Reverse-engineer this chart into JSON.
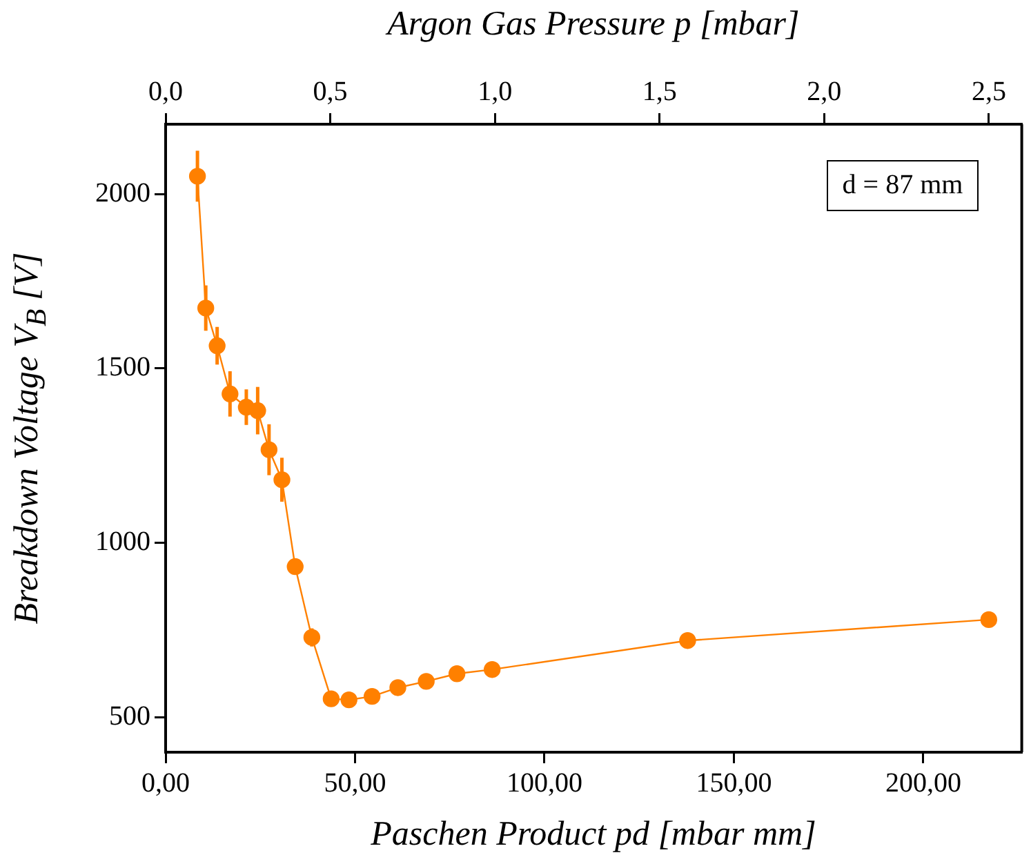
{
  "chart_data": {
    "type": "line",
    "xlabel": "Paschen Product pd [mbar mm]",
    "ylabel": "Breakdown Voltage V$_{B}$ [V]",
    "x2label": "Argon Gas Pressure p [mbar]",
    "annotations": [
      "d = 87 mm"
    ],
    "xlim": [
      0,
      226
    ],
    "xticks": [
      {
        "value": 0,
        "label": "0,00"
      },
      {
        "value": 50,
        "label": "50,00"
      },
      {
        "value": 100,
        "label": "100,00"
      },
      {
        "value": 150,
        "label": "150,00"
      },
      {
        "value": 200,
        "label": "200,00"
      }
    ],
    "x2lim": [
      0,
      2.6
    ],
    "x2ticks": [
      {
        "value": 0,
        "label": "0,0"
      },
      {
        "value": 0.5,
        "label": "0,5"
      },
      {
        "value": 1,
        "label": "1,0"
      },
      {
        "value": 1.5,
        "label": "1,5"
      },
      {
        "value": 2,
        "label": "2,0"
      },
      {
        "value": 2.5,
        "label": "2,5"
      }
    ],
    "ylim": [
      400,
      2200
    ],
    "yticks": [
      500,
      1000,
      1500,
      2000
    ],
    "grid": false,
    "legend": false,
    "marker": "circle",
    "line_style": "solid",
    "series": [
      {
        "color": "#ff8000",
        "x": [
          8.4,
          10.6,
          13.6,
          17.0,
          21.3,
          24.3,
          27.3,
          30.7,
          34.2,
          38.6,
          43.7,
          48.4,
          54.5,
          61.3,
          68.8,
          76.9,
          86.2,
          137.8,
          217.3
        ],
        "values": [
          2051,
          1673,
          1565,
          1427,
          1389,
          1379,
          1267,
          1181,
          932,
          729,
          553,
          550,
          560,
          585,
          603,
          625,
          637,
          720,
          780
        ],
        "errors": [
          73,
          65,
          54,
          65,
          51,
          68,
          73,
          63,
          null,
          26,
          null,
          null,
          null,
          null,
          null,
          null,
          null,
          null,
          null
        ]
      }
    ]
  }
}
